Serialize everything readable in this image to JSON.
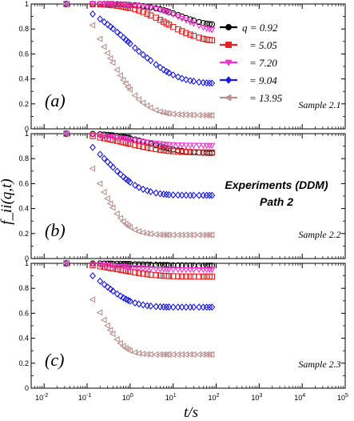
{
  "chart_data": {
    "type": "scatter",
    "xlabel": "t/s",
    "ylabel": "f_ii(q,t)",
    "xscale": "log",
    "xlim": [
      0.005,
      100000
    ],
    "ylim": [
      0,
      1
    ],
    "x_tick_labels": [
      "10-2",
      "10-1",
      "100",
      "101",
      "102",
      "103",
      "104",
      "105"
    ],
    "x_tick_values": [
      0.01,
      0.1,
      1,
      10,
      100,
      1000,
      10000,
      100000
    ],
    "y_tick_labels": [
      "0",
      "0.2",
      "0.4",
      "0.6",
      "0.8",
      "1"
    ],
    "y_tick_values": [
      0,
      0.2,
      0.4,
      0.6,
      0.8,
      1
    ],
    "annotation": {
      "line1": "Experiments (DDM)",
      "line2": "Path 2"
    },
    "legend": {
      "placement": "top-right",
      "q_symbol": "q",
      "entries": [
        {
          "label": "= 0.92",
          "marker": "circle",
          "color": "#000000"
        },
        {
          "label": "= 5.05",
          "marker": "square",
          "color": "#e8201e"
        },
        {
          "label": "= 7.20",
          "marker": "triangle-down",
          "color": "#ff2ad0"
        },
        {
          "label": "= 9.04",
          "marker": "diamond",
          "color": "#1a1ae6"
        },
        {
          "label": "= 13.95",
          "marker": "triangle-left",
          "color": "#bc8f8f"
        }
      ]
    },
    "x": [
      0.033,
      0.135,
      0.2,
      0.25,
      0.3,
      0.35,
      0.4,
      0.5,
      0.6,
      0.7,
      0.8,
      0.9,
      1.0,
      1.3,
      1.6,
      2.0,
      2.5,
      3.0,
      4.0,
      5.0,
      6.0,
      7.0,
      8.0,
      10,
      13,
      16,
      20,
      25,
      30,
      40,
      50,
      60,
      70,
      80
    ],
    "panels": [
      {
        "tag": "(a)",
        "sample": "Sample 2.1",
        "series": [
          {
            "values": [
              1.0,
              1.0,
              1.0,
              1.0,
              1.0,
              0.999,
              0.999,
              0.998,
              0.997,
              0.995,
              0.994,
              0.993,
              0.992,
              0.99,
              0.987,
              0.983,
              0.978,
              0.973,
              0.965,
              0.958,
              0.951,
              0.944,
              0.937,
              0.926,
              0.912,
              0.9,
              0.888,
              0.877,
              0.868,
              0.856,
              0.848,
              0.843,
              0.84,
              0.837
            ]
          },
          {
            "values": [
              1.0,
              0.999,
              0.998,
              0.996,
              0.994,
              0.992,
              0.99,
              0.986,
              0.982,
              0.978,
              0.974,
              0.97,
              0.967,
              0.958,
              0.948,
              0.936,
              0.922,
              0.909,
              0.89,
              0.873,
              0.858,
              0.845,
              0.834,
              0.816,
              0.797,
              0.782,
              0.767,
              0.755,
              0.745,
              0.731,
              0.722,
              0.716,
              0.712,
              0.709
            ]
          },
          {
            "values": [
              1.0,
              1.0,
              1.0,
              1.0,
              0.999,
              0.999,
              0.998,
              0.997,
              0.996,
              0.995,
              0.994,
              0.993,
              0.992,
              0.989,
              0.986,
              0.981,
              0.976,
              0.971,
              0.962,
              0.953,
              0.945,
              0.937,
              0.93,
              0.916,
              0.899,
              0.884,
              0.869,
              0.855,
              0.843,
              0.826,
              0.813,
              0.804,
              0.798,
              0.793
            ]
          },
          {
            "values": [
              1.0,
              0.92,
              0.88,
              0.856,
              0.836,
              0.818,
              0.802,
              0.775,
              0.752,
              0.731,
              0.713,
              0.697,
              0.683,
              0.648,
              0.62,
              0.594,
              0.568,
              0.547,
              0.515,
              0.492,
              0.474,
              0.46,
              0.449,
              0.432,
              0.416,
              0.404,
              0.394,
              0.386,
              0.381,
              0.374,
              0.37,
              0.368,
              0.367,
              0.366
            ]
          },
          {
            "values": [
              1.0,
              0.83,
              0.72,
              0.657,
              0.607,
              0.565,
              0.53,
              0.473,
              0.428,
              0.392,
              0.362,
              0.336,
              0.314,
              0.268,
              0.236,
              0.209,
              0.186,
              0.17,
              0.15,
              0.138,
              0.131,
              0.126,
              0.123,
              0.119,
              0.116,
              0.114,
              0.113,
              0.112,
              0.111,
              0.11,
              0.109,
              0.109,
              0.108,
              0.108
            ]
          }
        ]
      },
      {
        "tag": "(b)",
        "sample": "Sample 2.2",
        "series": [
          {
            "values": [
              1.0,
              0.998,
              0.995,
              0.993,
              0.99,
              0.988,
              0.986,
              0.982,
              0.978,
              0.974,
              0.97,
              0.966,
              0.962,
              0.953,
              0.945,
              0.936,
              0.927,
              0.92,
              0.908,
              0.898,
              0.891,
              0.885,
              0.88,
              0.873,
              0.866,
              0.861,
              0.857,
              0.854,
              0.852,
              0.849,
              0.847,
              0.846,
              0.845,
              0.845
            ]
          },
          {
            "values": [
              1.0,
              0.98,
              0.969,
              0.963,
              0.958,
              0.953,
              0.949,
              0.942,
              0.936,
              0.931,
              0.926,
              0.922,
              0.918,
              0.909,
              0.902,
              0.895,
              0.888,
              0.883,
              0.876,
              0.871,
              0.867,
              0.864,
              0.862,
              0.859,
              0.856,
              0.854,
              0.853,
              0.852,
              0.851,
              0.85,
              0.85,
              0.85,
              0.849,
              0.849
            ]
          },
          {
            "values": [
              1.0,
              0.99,
              0.984,
              0.98,
              0.977,
              0.974,
              0.972,
              0.967,
              0.963,
              0.96,
              0.957,
              0.954,
              0.952,
              0.946,
              0.941,
              0.936,
              0.931,
              0.928,
              0.923,
              0.919,
              0.916,
              0.914,
              0.913,
              0.911,
              0.909,
              0.908,
              0.907,
              0.906,
              0.906,
              0.906,
              0.905,
              0.905,
              0.905,
              0.905
            ]
          },
          {
            "values": [
              1.0,
              0.89,
              0.835,
              0.801,
              0.774,
              0.751,
              0.731,
              0.699,
              0.674,
              0.654,
              0.637,
              0.623,
              0.611,
              0.587,
              0.569,
              0.555,
              0.543,
              0.535,
              0.525,
              0.519,
              0.515,
              0.513,
              0.511,
              0.509,
              0.508,
              0.507,
              0.507,
              0.506,
              0.506,
              0.506,
              0.506,
              0.506,
              0.506,
              0.506
            ]
          },
          {
            "values": [
              1.0,
              0.72,
              0.6,
              0.532,
              0.481,
              0.44,
              0.407,
              0.358,
              0.323,
              0.297,
              0.278,
              0.263,
              0.251,
              0.23,
              0.217,
              0.208,
              0.201,
              0.197,
              0.193,
              0.191,
              0.19,
              0.19,
              0.189,
              0.189,
              0.189,
              0.189,
              0.189,
              0.189,
              0.189,
              0.189,
              0.189,
              0.189,
              0.189,
              0.189
            ]
          }
        ]
      },
      {
        "tag": "(c)",
        "sample": "Sample 2.3",
        "series": [
          {
            "values": [
              1.0,
              0.999,
              0.999,
              0.998,
              0.998,
              0.998,
              0.997,
              0.997,
              0.996,
              0.996,
              0.995,
              0.995,
              0.994,
              0.993,
              0.992,
              0.991,
              0.99,
              0.989,
              0.988,
              0.987,
              0.986,
              0.986,
              0.985,
              0.985,
              0.984,
              0.984,
              0.983,
              0.983,
              0.983,
              0.982,
              0.982,
              0.982,
              0.982,
              0.982
            ]
          },
          {
            "values": [
              1.0,
              0.985,
              0.976,
              0.971,
              0.966,
              0.962,
              0.959,
              0.953,
              0.948,
              0.944,
              0.94,
              0.937,
              0.934,
              0.927,
              0.922,
              0.917,
              0.912,
              0.909,
              0.905,
              0.902,
              0.9,
              0.899,
              0.898,
              0.897,
              0.896,
              0.895,
              0.895,
              0.895,
              0.894,
              0.894,
              0.894,
              0.894,
              0.894,
              0.894
            ]
          },
          {
            "values": [
              1.0,
              0.993,
              0.989,
              0.986,
              0.984,
              0.982,
              0.98,
              0.977,
              0.975,
              0.973,
              0.971,
              0.969,
              0.968,
              0.965,
              0.962,
              0.96,
              0.958,
              0.956,
              0.954,
              0.953,
              0.952,
              0.951,
              0.951,
              0.95,
              0.95,
              0.949,
              0.949,
              0.949,
              0.949,
              0.949,
              0.949,
              0.949,
              0.949,
              0.949
            ]
          },
          {
            "values": [
              1.0,
              0.9,
              0.857,
              0.831,
              0.81,
              0.793,
              0.778,
              0.755,
              0.738,
              0.724,
              0.713,
              0.704,
              0.697,
              0.683,
              0.674,
              0.667,
              0.661,
              0.658,
              0.654,
              0.652,
              0.651,
              0.65,
              0.65,
              0.649,
              0.649,
              0.649,
              0.649,
              0.649,
              0.649,
              0.649,
              0.649,
              0.649,
              0.649,
              0.649
            ]
          },
          {
            "values": [
              1.0,
              0.71,
              0.606,
              0.546,
              0.501,
              0.465,
              0.435,
              0.391,
              0.36,
              0.338,
              0.321,
              0.309,
              0.3,
              0.286,
              0.279,
              0.275,
              0.272,
              0.271,
              0.27,
              0.27,
              0.27,
              0.27,
              0.27,
              0.27,
              0.27,
              0.27,
              0.27,
              0.27,
              0.27,
              0.27,
              0.27,
              0.27,
              0.27,
              0.27
            ]
          }
        ]
      }
    ]
  }
}
